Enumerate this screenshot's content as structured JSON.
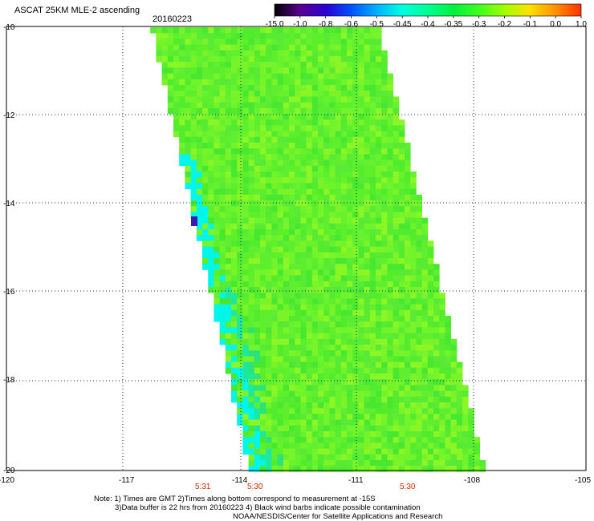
{
  "header": {
    "title": "ASCAT 25KM MLE-2 ascending",
    "date": "20160223"
  },
  "colorbar": {
    "labels": [
      "-15.0",
      "-1.0",
      "-0.8",
      "-0.6",
      "-0.5",
      "-0.45",
      "-0.4",
      "-0.35",
      "-0.3",
      "-0.2",
      "-0.1",
      "0.0",
      "1.0"
    ],
    "colors": [
      "#000000",
      "#5a0090",
      "#2a00d0",
      "#0050ff",
      "#00b0ff",
      "#00ffe0",
      "#00ff90",
      "#00f040",
      "#40ff20",
      "#a0ff00",
      "#ffe000",
      "#ff9000",
      "#ff3000"
    ]
  },
  "axes": {
    "lat_labels": [
      "-10",
      "-12",
      "-14",
      "-16",
      "-18",
      "-20"
    ],
    "lon_labels": [
      "-120",
      "-117",
      "-114",
      "-111",
      "-108",
      "-105"
    ],
    "lat_range": [
      -20,
      -10
    ],
    "lon_range": [
      -120,
      -105
    ]
  },
  "times": [
    "5:31",
    "5:30",
    "5:30"
  ],
  "notes": [
    "Note: 1) Times are GMT 2)Times along bottom correspond to measurement at -15S",
    "3)Data buffer is 22 hrs from 20160223 4) Black wind barbs indicate possible contamination",
    "NOAA/NESDIS/Center for Satellite Applications and Research"
  ],
  "swath": {
    "dominant_color": "#5cf02a",
    "edge_color": "#2ce27a",
    "anomaly_color": "#00f6f0",
    "outlier_color": "#3a1ab0"
  }
}
